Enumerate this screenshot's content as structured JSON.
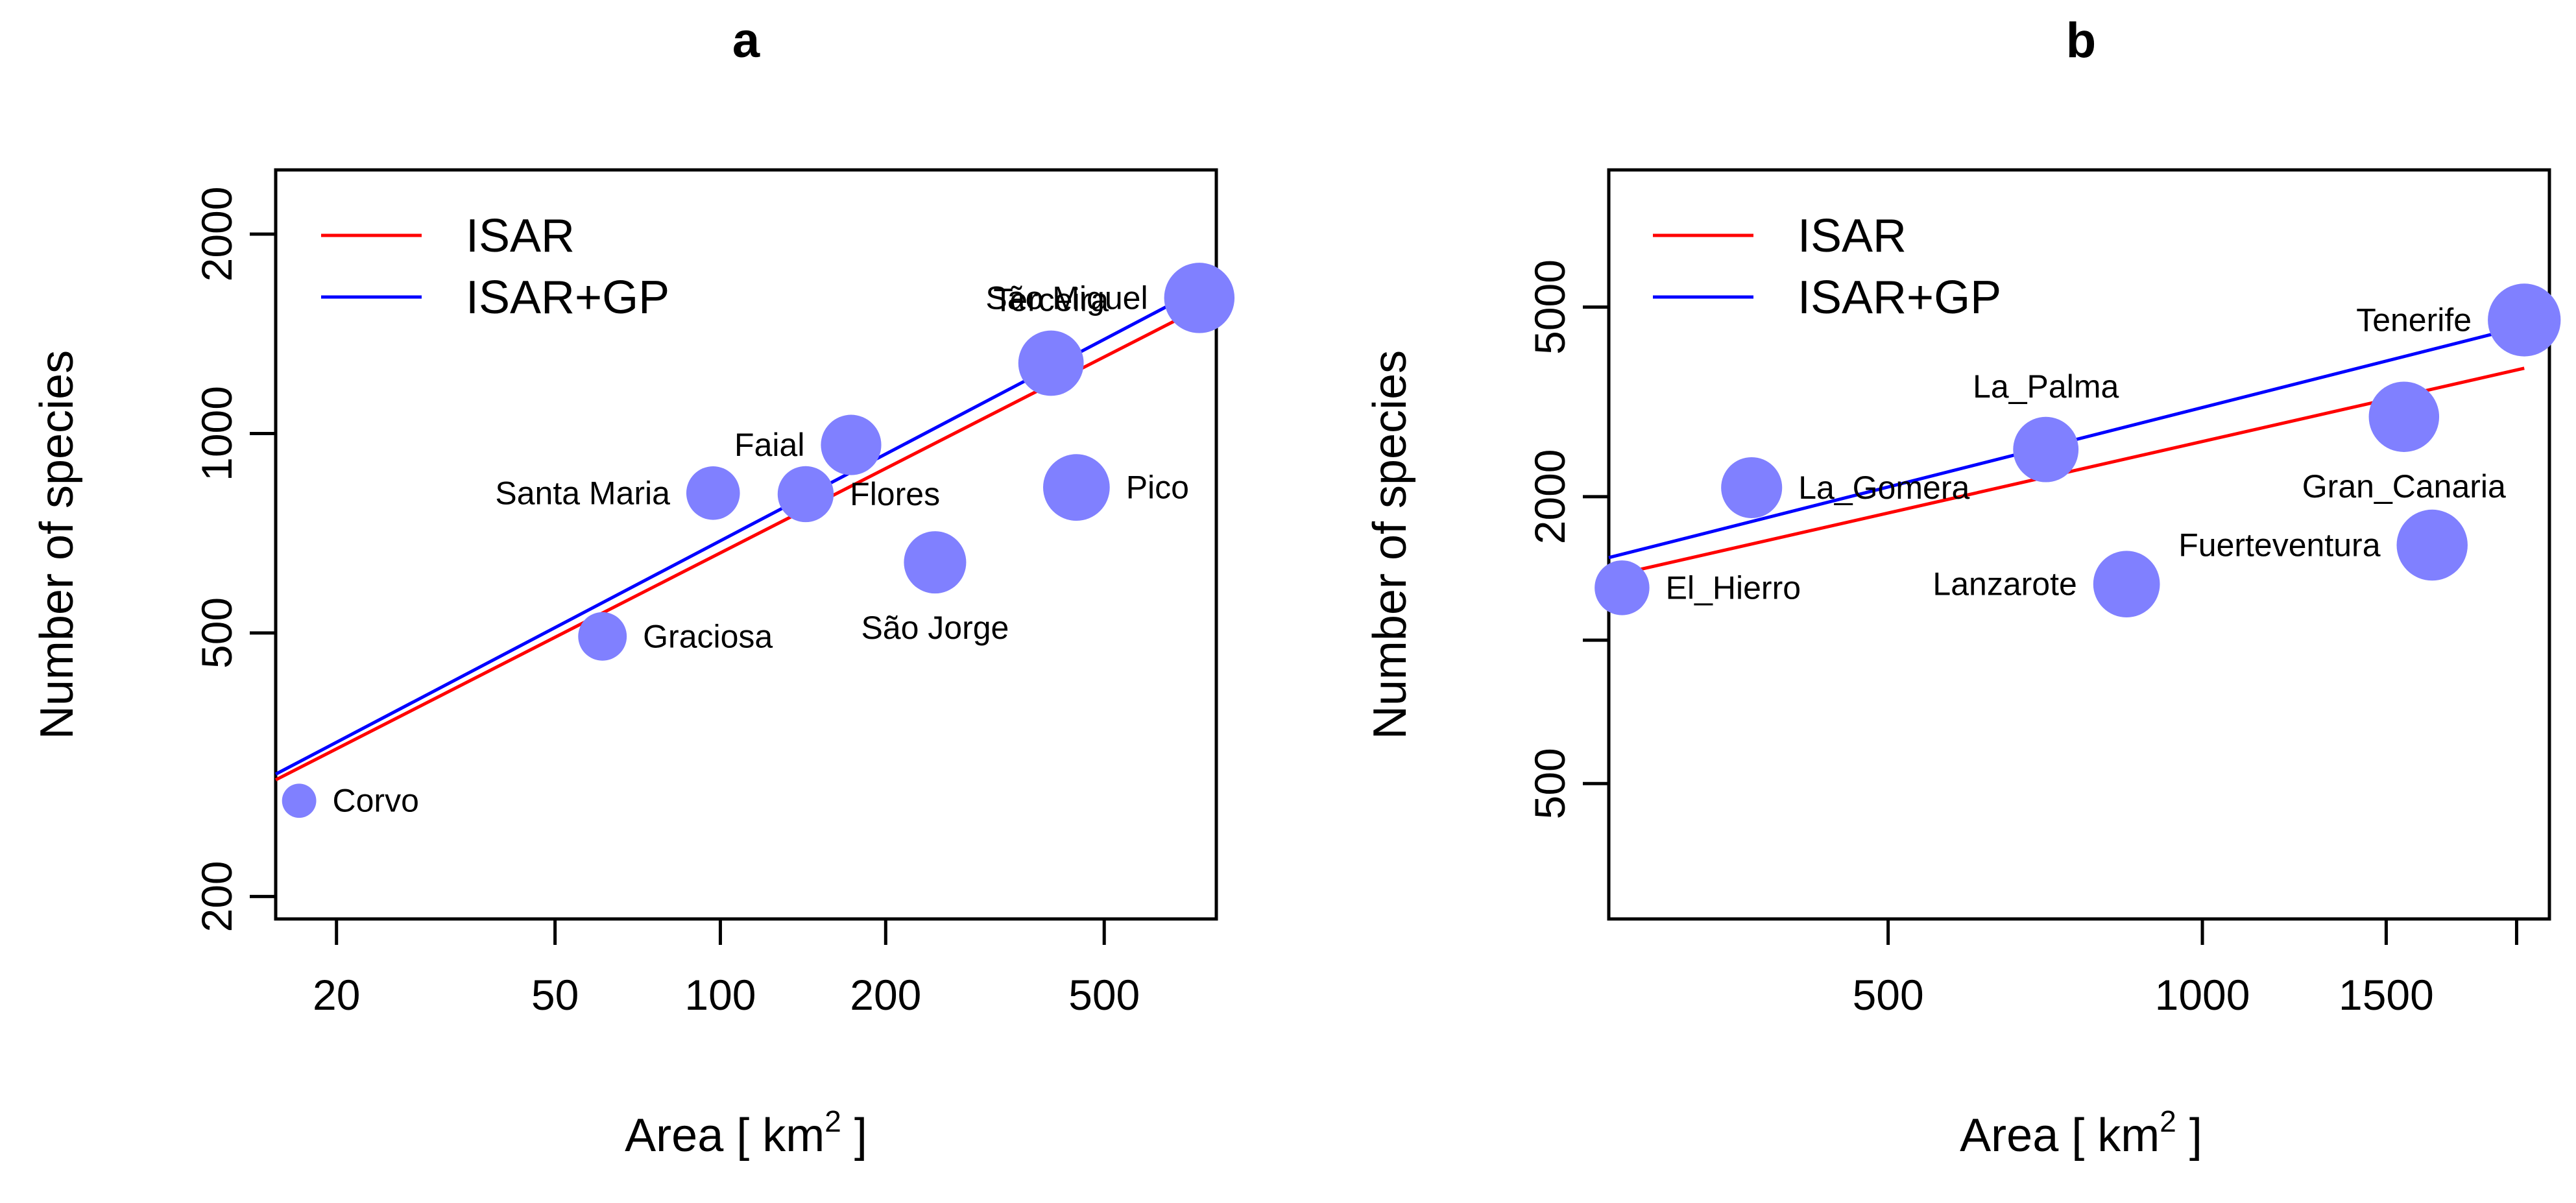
{
  "chart_data": [
    {
      "type": "scatter",
      "title": "a",
      "xlabel": "Area [ km",
      "xlabel_superscript": "2",
      "xlabel_suffix": " ]",
      "ylabel": "Number of species",
      "xscale": "log",
      "yscale": "log",
      "xlim": [
        15.5,
        800
      ],
      "ylim": [
        185,
        2500
      ],
      "xticks": [
        {
          "value": 20,
          "label": "20"
        },
        {
          "value": 50,
          "label": "50"
        },
        {
          "value": 100,
          "label": "100"
        },
        {
          "value": 200,
          "label": "200"
        },
        {
          "value": 500,
          "label": "500"
        }
      ],
      "yticks": [
        {
          "value": 200,
          "label": "200"
        },
        {
          "value": 500,
          "label": "500"
        },
        {
          "value": 1000,
          "label": "1000"
        },
        {
          "value": 2000,
          "label": "2000"
        }
      ],
      "legend": {
        "position": "top-left",
        "entries": [
          {
            "label": "ISAR",
            "color": "#ff0000"
          },
          {
            "label": "ISAR+GP",
            "color": "#0000ff"
          }
        ]
      },
      "point_color": "#8080ff",
      "points": [
        {
          "name": "Corvo",
          "x": 17.1,
          "y": 279,
          "size": 0.55,
          "label_side": "right"
        },
        {
          "name": "Graciosa",
          "x": 61,
          "y": 494,
          "size": 0.78,
          "label_side": "right"
        },
        {
          "name": "Santa Maria",
          "x": 97,
          "y": 813,
          "size": 0.86,
          "label_side": "left"
        },
        {
          "name": "Flores",
          "x": 143,
          "y": 810,
          "size": 0.9,
          "label_side": "right"
        },
        {
          "name": "Faial",
          "x": 173,
          "y": 961,
          "size": 0.97,
          "label_side": "left"
        },
        {
          "name": "São Jorge",
          "x": 246,
          "y": 639,
          "size": 1.0,
          "label_side": "below"
        },
        {
          "name": "Terceira",
          "x": 400,
          "y": 1277,
          "size": 1.05,
          "label_side": "above"
        },
        {
          "name": "Pico",
          "x": 445,
          "y": 829,
          "size": 1.07,
          "label_side": "right"
        },
        {
          "name": "São Miguel",
          "x": 745,
          "y": 1602,
          "size": 1.13,
          "label_side": "left"
        }
      ],
      "lines": [
        {
          "name": "ISAR",
          "color": "#ff0000",
          "x": [
            15.5,
            745
          ],
          "y": [
            300,
            1545
          ]
        },
        {
          "name": "ISAR+GP",
          "color": "#0000ff",
          "x": [
            15.5,
            745
          ],
          "y": [
            306,
            1650
          ]
        }
      ]
    },
    {
      "type": "scatter",
      "title": "b",
      "xlabel": "Area [ km",
      "xlabel_superscript": "2",
      "xlabel_suffix": " ]",
      "ylabel": "Number of species",
      "xscale": "log",
      "yscale": "log",
      "xlim": [
        270,
        2150
      ],
      "ylim": [
        260,
        9700
      ],
      "xticks": [
        {
          "value": 500,
          "label": "500"
        },
        {
          "value": 1000,
          "label": "1000"
        },
        {
          "value": 1500,
          "label": "1500"
        },
        {
          "value": 2000,
          "label": ""
        }
      ],
      "yticks": [
        {
          "value": 500,
          "label": "500"
        },
        {
          "value": 1000,
          "label": ""
        },
        {
          "value": 2000,
          "label": "2000"
        },
        {
          "value": 5000,
          "label": "5000"
        }
      ],
      "legend": {
        "position": "top-left",
        "entries": [
          {
            "label": "ISAR",
            "color": "#ff0000"
          },
          {
            "label": "ISAR+GP",
            "color": "#0000ff"
          }
        ]
      },
      "point_color": "#8080ff",
      "points": [
        {
          "name": "El_Hierro",
          "x": 278,
          "y": 1288,
          "size": 0.88,
          "label_side": "right"
        },
        {
          "name": "La_Gomera",
          "x": 370,
          "y": 2089,
          "size": 0.98,
          "label_side": "right"
        },
        {
          "name": "La_Palma",
          "x": 708,
          "y": 2512,
          "size": 1.05,
          "label_side": "above"
        },
        {
          "name": "Lanzarote",
          "x": 846,
          "y": 1311,
          "size": 1.07,
          "label_side": "left"
        },
        {
          "name": "Gran_Canaria",
          "x": 1560,
          "y": 2942,
          "size": 1.13,
          "label_side": "below"
        },
        {
          "name": "Fuerteventura",
          "x": 1660,
          "y": 1583,
          "size": 1.14,
          "label_side": "left"
        },
        {
          "name": "Tenerife",
          "x": 2034,
          "y": 4697,
          "size": 1.17,
          "label_side": "left"
        }
      ],
      "lines": [
        {
          "name": "ISAR",
          "color": "#ff0000",
          "x": [
            270,
            2034
          ],
          "y": [
            1360,
            3720
          ]
        },
        {
          "name": "ISAR+GP",
          "color": "#0000ff",
          "x": [
            270,
            2034
          ],
          "y": [
            1490,
            4560
          ]
        }
      ]
    }
  ]
}
